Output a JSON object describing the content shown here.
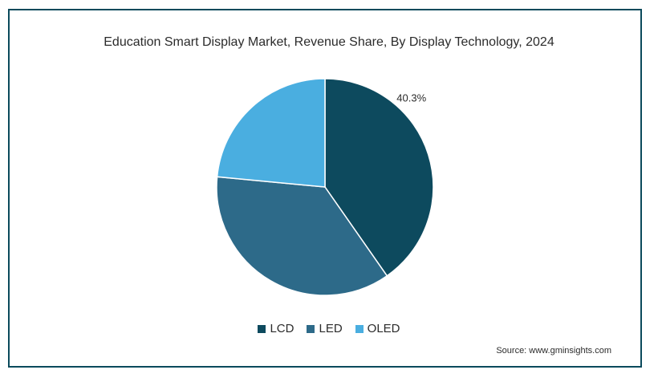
{
  "chart_data": {
    "type": "pie",
    "title": "Education Smart Display Market, Revenue Share, By Display Technology, 2024",
    "slices": [
      {
        "label": "LCD",
        "value": 40.3,
        "color": "#0d4a5e",
        "data_label": "40.3%"
      },
      {
        "label": "LED",
        "value": 36.2,
        "color": "#2d6a89",
        "data_label": ""
      },
      {
        "label": "OLED",
        "value": 23.5,
        "color": "#4aaee0",
        "data_label": ""
      }
    ],
    "legend_position": "bottom"
  },
  "source": "Source: www.gminsights.com"
}
